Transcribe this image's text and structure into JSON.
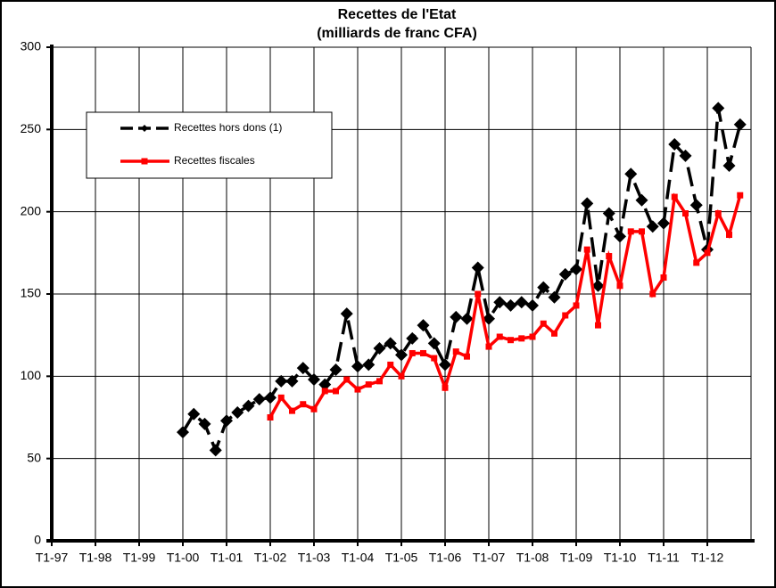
{
  "chart_data": {
    "type": "line",
    "title": "Recettes de l'Etat",
    "subtitle": "(milliards de franc CFA)",
    "categories": [
      "T1-97",
      null,
      null,
      null,
      "T1-98",
      null,
      null,
      null,
      "T1-99",
      null,
      null,
      null,
      "T1-00",
      null,
      null,
      null,
      "T1-01",
      null,
      null,
      null,
      "T1-02",
      null,
      null,
      null,
      "T1-03",
      null,
      null,
      null,
      "T1-04",
      null,
      null,
      null,
      "T1-05",
      null,
      null,
      null,
      "T1-06",
      null,
      null,
      null,
      "T1-07",
      null,
      null,
      null,
      "T1-08",
      null,
      null,
      null,
      "T1-09",
      null,
      null,
      null,
      "T1-10",
      null,
      null,
      null,
      "T1-11",
      null,
      null,
      null,
      "T1-12",
      null,
      null,
      null
    ],
    "series": [
      {
        "name": "Recettes hors dons (1)",
        "color": "#000000",
        "dashed": true,
        "marker": "diamond",
        "values": [
          null,
          null,
          null,
          null,
          null,
          null,
          null,
          null,
          null,
          null,
          null,
          null,
          66,
          77,
          71,
          55,
          73,
          78,
          82,
          86,
          87,
          97,
          97,
          105,
          98,
          95,
          104,
          138,
          106,
          107,
          117,
          120,
          113,
          123,
          131,
          120,
          107,
          136,
          135,
          166,
          135,
          145,
          143,
          145,
          143,
          154,
          148,
          162,
          165,
          205,
          155,
          199,
          185,
          223,
          207,
          191,
          193,
          241,
          234,
          204,
          177,
          263,
          228,
          253
        ]
      },
      {
        "name": "Recettes fiscales",
        "color": "#ff0000",
        "dashed": false,
        "marker": "square",
        "values": [
          null,
          null,
          null,
          null,
          null,
          null,
          null,
          null,
          null,
          null,
          null,
          null,
          null,
          null,
          null,
          null,
          null,
          null,
          null,
          null,
          75,
          87,
          79,
          83,
          80,
          91,
          91,
          98,
          92,
          95,
          97,
          107,
          100,
          114,
          114,
          111,
          93,
          115,
          112,
          150,
          118,
          124,
          122,
          123,
          124,
          132,
          126,
          137,
          143,
          177,
          131,
          173,
          155,
          188,
          188,
          150,
          160,
          209,
          199,
          169,
          175,
          199,
          186,
          210
        ]
      }
    ],
    "ylim": [
      0,
      300
    ],
    "yticks": [
      0,
      50,
      100,
      150,
      200,
      250,
      300
    ],
    "grid": true
  }
}
